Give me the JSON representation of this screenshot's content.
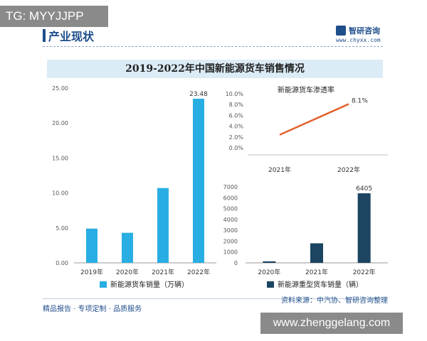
{
  "overlay": {
    "top_left_tag": "TG: MYYJJPP",
    "bottom_right_tag": "www.zhenggelang.com"
  },
  "header": {
    "section_title": "产业现状",
    "brand_name": "智研咨询",
    "brand_url": "www.chyxx.com"
  },
  "footer": {
    "left_text": "精品报告 · 专项定制 · 品质服务",
    "source_text": "资料来源：中汽协、智研咨询整理"
  },
  "colors": {
    "sales_bar": "#29aee3",
    "heavy_bar": "#1b4560",
    "penetration_line": "#e2622f",
    "brand": "#1f4e8c",
    "title_band": "#dcecf7"
  },
  "chart_data": [
    {
      "type": "bar",
      "title": "2019-2022年中国新能源货车销售情况",
      "categories": [
        "2019年",
        "2020年",
        "2021年",
        "2022年"
      ],
      "series": [
        {
          "name": "新能源货车销量（万辆）",
          "values": [
            4.9,
            4.3,
            10.7,
            23.48
          ]
        }
      ],
      "data_labels": [
        "",
        "",
        "",
        "23.48"
      ],
      "yticks": [
        "0.00",
        "5.00",
        "10.00",
        "15.00",
        "20.00",
        "25.00"
      ],
      "ylim": [
        0,
        25
      ],
      "legend": "bottom"
    },
    {
      "type": "line",
      "title": "新能源货车渗透率",
      "categories": [
        "2021年",
        "2022年"
      ],
      "series": [
        {
          "name": "",
          "values": [
            2.4,
            8.1
          ]
        }
      ],
      "data_labels": [
        "",
        "8.1%"
      ],
      "yticks": [
        "0.0%",
        "2.0%",
        "4.0%",
        "6.0%",
        "8.0%",
        "10.0%"
      ],
      "ylim": [
        0,
        10
      ]
    },
    {
      "type": "bar",
      "categories": [
        "2020年",
        "2021年",
        "2022年"
      ],
      "series": [
        {
          "name": "新能源重型货车销量（辆）",
          "values": [
            140,
            1800,
            6405
          ]
        }
      ],
      "data_labels": [
        "",
        "",
        "6405"
      ],
      "yticks": [
        "0",
        "1000",
        "2000",
        "3000",
        "4000",
        "5000",
        "6000",
        "7000"
      ],
      "ylim": [
        0,
        7000
      ],
      "legend": "bottom"
    }
  ]
}
